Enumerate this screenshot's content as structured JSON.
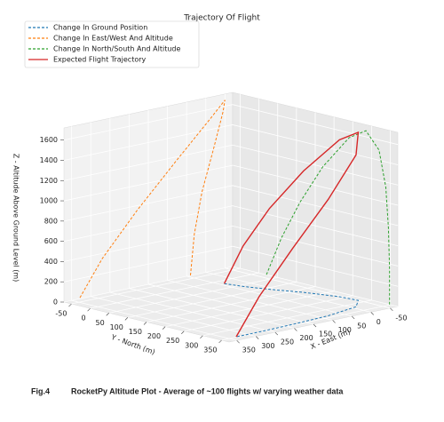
{
  "chart_data": {
    "type": "line3d",
    "title": "Trajectory Of Flight",
    "xlabel": "X - East (m)",
    "ylabel": "Y - North (m)",
    "zlabel": "Z - Altitude Above Ground Level (m)",
    "xlim": [
      -70,
      370
    ],
    "ylim": [
      -70,
      370
    ],
    "zlim": [
      0,
      1720
    ],
    "xticks": [
      -50,
      0,
      50,
      100,
      150,
      200,
      250,
      300,
      350
    ],
    "yticks": [
      -50,
      0,
      50,
      100,
      150,
      200,
      250,
      300,
      350
    ],
    "zticks": [
      0,
      200,
      400,
      600,
      800,
      1000,
      1200,
      1400,
      1600
    ],
    "grid": true,
    "legend": "upper left",
    "series": [
      {
        "name": "Change In Ground Position",
        "color": "#1f77b4",
        "linestyle": "dashed",
        "x": [
          40,
          30,
          10,
          -20,
          -45,
          -50,
          -10,
          80,
          180,
          270,
          330
        ],
        "y": [
          20,
          60,
          110,
          170,
          240,
          285,
          320,
          338,
          345,
          348,
          348
        ],
        "z": [
          0,
          0,
          0,
          0,
          0,
          0,
          0,
          0,
          0,
          0,
          0
        ]
      },
      {
        "name": "Change In East/West And Altitude",
        "color": "#ff7f0e",
        "linestyle": "dashed",
        "x": [
          40,
          30,
          10,
          -20,
          -45,
          -50,
          -10,
          80,
          180,
          270,
          330
        ],
        "y": [
          -70,
          -70,
          -70,
          -70,
          -70,
          -70,
          -70,
          -70,
          -70,
          -70,
          -70
        ],
        "z": [
          0,
          400,
          800,
          1200,
          1550,
          1660,
          1500,
          1150,
          750,
          350,
          0
        ]
      },
      {
        "name": "Change In North/South And Altitude",
        "color": "#2ca02c",
        "linestyle": "dashed",
        "x": [
          -70,
          -70,
          -70,
          -70,
          -70,
          -70,
          -70,
          -70,
          -70,
          -70,
          -70
        ],
        "y": [
          20,
          60,
          110,
          170,
          240,
          285,
          320,
          338,
          345,
          348,
          348
        ],
        "z": [
          0,
          400,
          800,
          1200,
          1550,
          1660,
          1500,
          1150,
          750,
          350,
          0
        ]
      },
      {
        "name": "Expected Flight Trajectory",
        "color": "#d62728",
        "linestyle": "solid",
        "x": [
          40,
          30,
          10,
          -20,
          -45,
          -50,
          -10,
          80,
          180,
          270,
          330
        ],
        "y": [
          20,
          60,
          110,
          170,
          240,
          285,
          320,
          338,
          345,
          348,
          348
        ],
        "z": [
          0,
          400,
          800,
          1200,
          1550,
          1660,
          1500,
          1150,
          750,
          350,
          0
        ]
      }
    ]
  },
  "caption": {
    "label": "Fig.4",
    "text": "RocketPy Altitude Plot - Average of ~100 flights w/ varying weather data"
  }
}
